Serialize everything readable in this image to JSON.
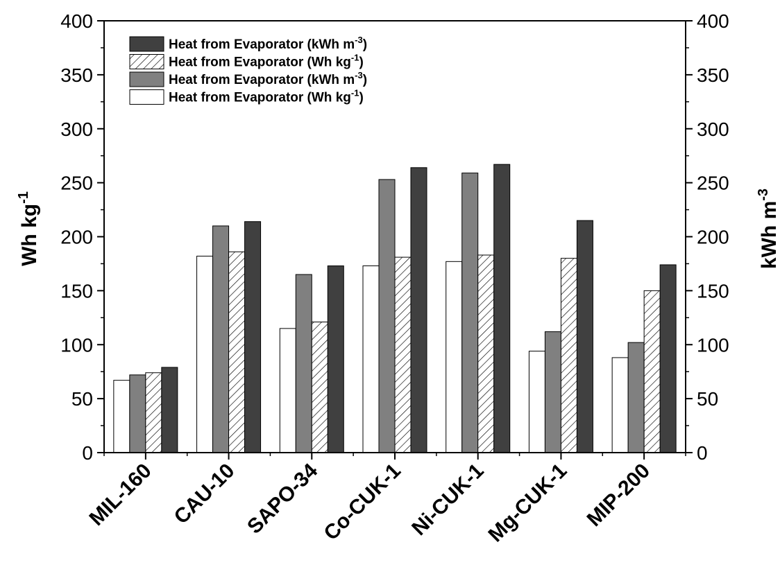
{
  "chart_data": {
    "type": "bar",
    "categories": [
      "MIL-160",
      "CAU-10",
      "SAPO-34",
      "Co-CUK-1",
      "Ni-CUK-1",
      "Mg-CUK-1",
      "MIP-200"
    ],
    "series": [
      {
        "name": "Heat from Evaporator (Wh kg-1)",
        "legend_main": "Heat from Evaporator (Wh kg",
        "legend_sup": "-1",
        "legend_tail": ")",
        "fill": "#ffffff",
        "pattern": "none",
        "axis": "left",
        "values": [
          67,
          182,
          115,
          173,
          177,
          94,
          88
        ]
      },
      {
        "name": "Heat from Evaporator (kWh m-3)",
        "legend_main": "Heat from Evaporator (kWh m",
        "legend_sup": "-3",
        "legend_tail": ")",
        "fill": "#808080",
        "pattern": "none",
        "axis": "right",
        "values": [
          72,
          210,
          165,
          253,
          259,
          112,
          102
        ]
      },
      {
        "name": "Heat from Evaporator (Wh kg-1)",
        "legend_main": "Heat from Evaporator (Wh kg",
        "legend_sup": "-1",
        "legend_tail": ")",
        "fill": "#ffffff",
        "pattern": "hatch",
        "axis": "left",
        "values": [
          74,
          186,
          121,
          181,
          183,
          180,
          150
        ]
      },
      {
        "name": "Heat from Evaporator (kWh m-3)",
        "legend_main": "Heat from Evaporator (kWh m",
        "legend_sup": "-3",
        "legend_tail": ")",
        "fill": "#404040",
        "pattern": "none",
        "axis": "right",
        "values": [
          79,
          214,
          173,
          264,
          267,
          215,
          174
        ]
      }
    ],
    "legend_order": [
      3,
      2,
      1,
      0
    ],
    "legend_position": "top-left",
    "ylabel_main": "Wh kg",
    "ylabel_sup": "-1",
    "y2label_main": "kWh m",
    "y2label_sup": "-3",
    "ylim": [
      0,
      400
    ],
    "y2lim": [
      0,
      400
    ],
    "yticks": [
      0,
      50,
      100,
      150,
      200,
      250,
      300,
      350,
      400
    ],
    "grid": false
  }
}
